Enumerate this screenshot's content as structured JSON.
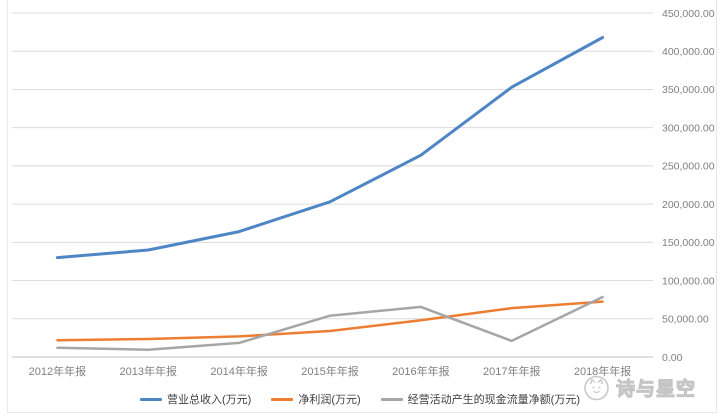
{
  "chart_data": {
    "type": "line",
    "title": "",
    "categories": [
      "2012年年报",
      "2013年年报",
      "2014年年报",
      "2015年年报",
      "2016年年报",
      "2017年年报",
      "2018年年报"
    ],
    "series": [
      {
        "name": "营业总收入(万元)",
        "color": "#4e86c5",
        "values": [
          130000,
          140000,
          164000,
          203000,
          264000,
          353000,
          418000
        ]
      },
      {
        "name": "净利润(万元)",
        "color": "#ed7d31",
        "values": [
          22000,
          23500,
          27000,
          34000,
          48000,
          64000,
          72500
        ]
      },
      {
        "name": "经营活动产生的现金流量净额(万元)",
        "color": "#a6a6a6",
        "values": [
          12000,
          9500,
          18500,
          54000,
          65500,
          21000,
          78500
        ]
      }
    ],
    "ylim": [
      0,
      450000
    ],
    "ytick_step": 50000,
    "ytick_labels": [
      "0.00",
      "50,000.00",
      "100,000.00",
      "150,000.00",
      "200,000.00",
      "250,000.00",
      "300,000.00",
      "350,000.00",
      "400,000.00",
      "450,000.00"
    ],
    "xlabel": "",
    "ylabel": "",
    "legend_position": "bottom",
    "grid": "horizontal"
  },
  "watermark": {
    "text": "诗与星空"
  },
  "styles": {
    "background": "#ffffff",
    "grid_color": "#dcdcdc",
    "axis_color": "#c0c0c0",
    "tick_label_color": "#7f7f7f",
    "legend_text_color": "#404040",
    "watermark_color": "#c5c5c5"
  }
}
